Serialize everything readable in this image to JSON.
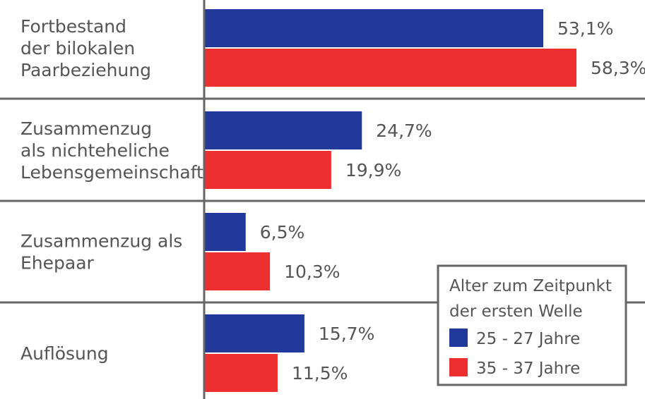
{
  "chart_data": {
    "type": "bar",
    "orientation": "horizontal",
    "categories": [
      [
        "Fortbestand",
        "der bilokalen",
        "Paarbeziehung"
      ],
      [
        "Zusammenzug",
        "als nichteheliche",
        "Lebensgemeinschaft"
      ],
      [
        "Zusammenzug als",
        "Ehepaar"
      ],
      [
        "Auflösung"
      ]
    ],
    "series": [
      {
        "name": "25 - 27 Jahre",
        "color": "#21399a",
        "values": [
          53.1,
          24.7,
          6.5,
          15.7
        ],
        "labels": [
          "53,1%",
          "24,7%",
          "6,5%",
          "15,7%"
        ]
      },
      {
        "name": "35 - 37 Jahre",
        "color": "#ec3030",
        "values": [
          58.3,
          19.9,
          10.3,
          11.5
        ],
        "labels": [
          "58,3%",
          "19,9%",
          "10,3%",
          "11,5%"
        ]
      }
    ],
    "xlim": [
      0,
      70
    ],
    "grid": false,
    "legend": {
      "title": [
        "Alter zum Zeitpunkt",
        "der ersten Welle"
      ],
      "position": "bottom-right"
    }
  }
}
